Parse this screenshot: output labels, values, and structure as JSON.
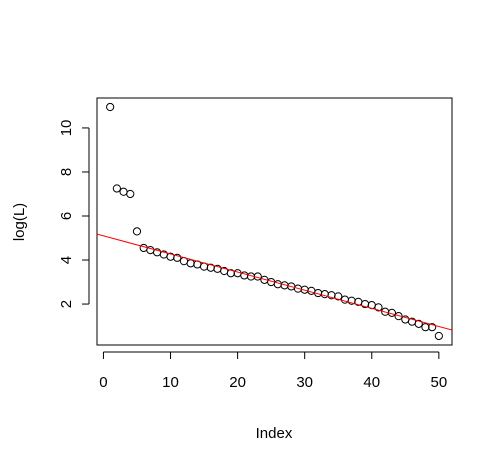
{
  "chart_data": {
    "type": "scatter",
    "x_label": "Index",
    "y_label": "log(L)",
    "x": [
      1,
      2,
      3,
      4,
      5,
      6,
      7,
      8,
      9,
      10,
      11,
      12,
      13,
      14,
      15,
      16,
      17,
      18,
      19,
      20,
      21,
      22,
      23,
      24,
      25,
      26,
      27,
      28,
      29,
      30,
      31,
      32,
      33,
      34,
      35,
      36,
      37,
      38,
      39,
      40,
      41,
      42,
      43,
      44,
      45,
      46,
      47,
      48,
      49,
      50
    ],
    "values": [
      10.95,
      7.25,
      7.1,
      7.0,
      5.3,
      4.55,
      4.45,
      4.35,
      4.25,
      4.15,
      4.1,
      3.95,
      3.85,
      3.8,
      3.7,
      3.65,
      3.6,
      3.5,
      3.4,
      3.4,
      3.3,
      3.25,
      3.25,
      3.1,
      3.0,
      2.9,
      2.85,
      2.8,
      2.7,
      2.65,
      2.6,
      2.5,
      2.45,
      2.4,
      2.35,
      2.2,
      2.15,
      2.1,
      2.0,
      1.95,
      1.85,
      1.65,
      1.6,
      1.45,
      1.3,
      1.2,
      1.1,
      0.95,
      0.95,
      0.55
    ],
    "color": "#000000",
    "abline": {
      "intercept": 5.1,
      "slope": -0.0824,
      "color": "#ff0000"
    },
    "xlim": [
      -0.96,
      51.96
    ],
    "xticks": [
      0,
      10,
      20,
      30,
      40,
      50
    ],
    "ylim": [
      0.14,
      11.36
    ],
    "yticks": [
      2,
      4,
      6,
      8,
      10
    ]
  }
}
